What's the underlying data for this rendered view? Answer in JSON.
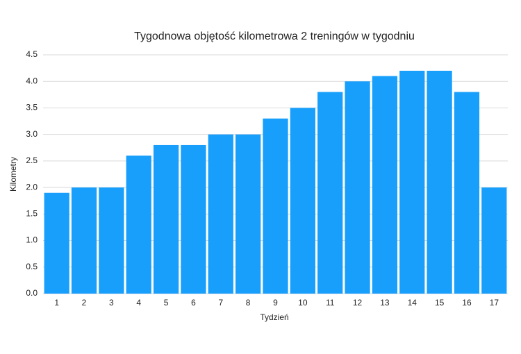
{
  "chart_data": {
    "type": "bar",
    "title": "Tygodnowa objętość kilometrowa 2 treningów w tygodniu",
    "x_label": "Tydzień",
    "y_label": "Kilometry",
    "categories": [
      "1",
      "2",
      "3",
      "4",
      "5",
      "6",
      "7",
      "8",
      "9",
      "10",
      "11",
      "12",
      "13",
      "14",
      "15",
      "16",
      "17"
    ],
    "values": [
      1.9,
      2.0,
      2.0,
      2.6,
      2.8,
      2.8,
      3.0,
      3.0,
      3.3,
      3.5,
      3.8,
      4.0,
      4.1,
      4.2,
      4.2,
      3.8,
      2.0
    ],
    "color": "#189ffb",
    "ylim": [
      0,
      4.5
    ],
    "yticks": [
      {
        "value": 0,
        "label": "0.0"
      },
      0.5,
      {
        "value": 1,
        "label": "1.0"
      },
      1.5,
      {
        "value": 2,
        "label": "2.0"
      },
      2.5,
      {
        "value": 3,
        "label": "3.0"
      },
      3.5,
      {
        "value": 4,
        "label": "4.0"
      },
      4.5
    ],
    "grid": true
  }
}
